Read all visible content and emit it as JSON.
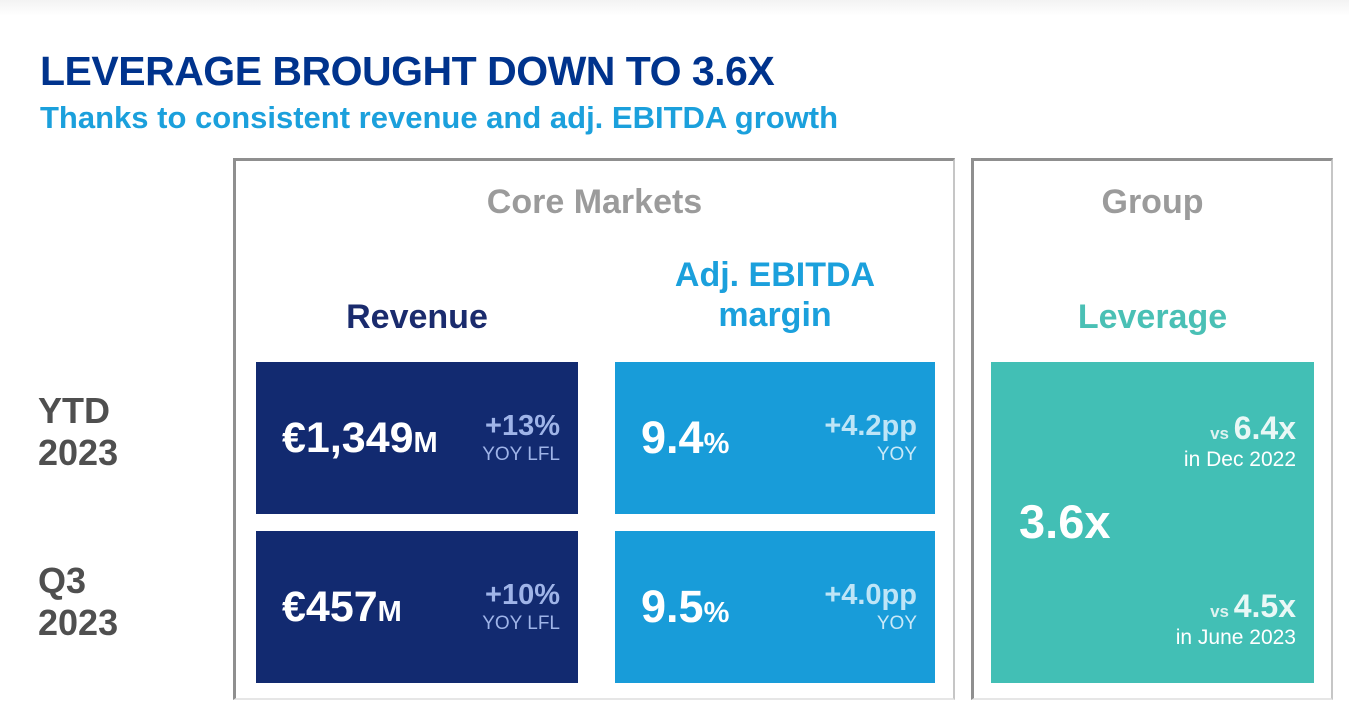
{
  "slide": {
    "title": "LEVERAGE BROUGHT DOWN TO 3.6X",
    "subtitle": "Thanks to consistent revenue and adj. EBITDA growth"
  },
  "row_labels": [
    {
      "line1": "YTD",
      "line2": "2023"
    },
    {
      "line1": "Q3",
      "line2": "2023"
    }
  ],
  "core_markets": {
    "panel_title": "Core Markets",
    "revenue_header": "Revenue",
    "ebitda_header_line1": "Adj. EBITDA",
    "ebitda_header_line2": "margin",
    "rows": [
      {
        "revenue": {
          "value": "€1,349",
          "unit": "M",
          "delta": "+13%",
          "delta_note": "YOY LFL"
        },
        "ebitda": {
          "value": "9.4",
          "unit": "%",
          "delta": "+4.2pp",
          "delta_note": "YOY"
        }
      },
      {
        "revenue": {
          "value": "€457",
          "unit": "M",
          "delta": "+10%",
          "delta_note": "YOY LFL"
        },
        "ebitda": {
          "value": "9.5",
          "unit": "%",
          "delta": "+4.0pp",
          "delta_note": "YOY"
        }
      }
    ]
  },
  "group": {
    "panel_title": "Group",
    "column_header": "Leverage",
    "current_value": "3.6x",
    "comparisons": [
      {
        "prefix": "vs ",
        "value": "6.4x",
        "period": "in Dec 2022"
      },
      {
        "prefix": "vs ",
        "value": "4.5x",
        "period": "in June 2023"
      }
    ]
  },
  "colors": {
    "title_navy": "#00338d",
    "subtitle_blue": "#1ba0dc",
    "navy_box": "#122a70",
    "blue_box": "#189cd9",
    "teal_box": "#42bfb5",
    "panel_header_gray": "#9b9b9b",
    "row_label_gray": "#4f4f4f",
    "delta_on_navy": "#9fb4e8",
    "delta_on_blue": "#bee5f7",
    "leverage_header_teal": "#4ac0b5"
  }
}
